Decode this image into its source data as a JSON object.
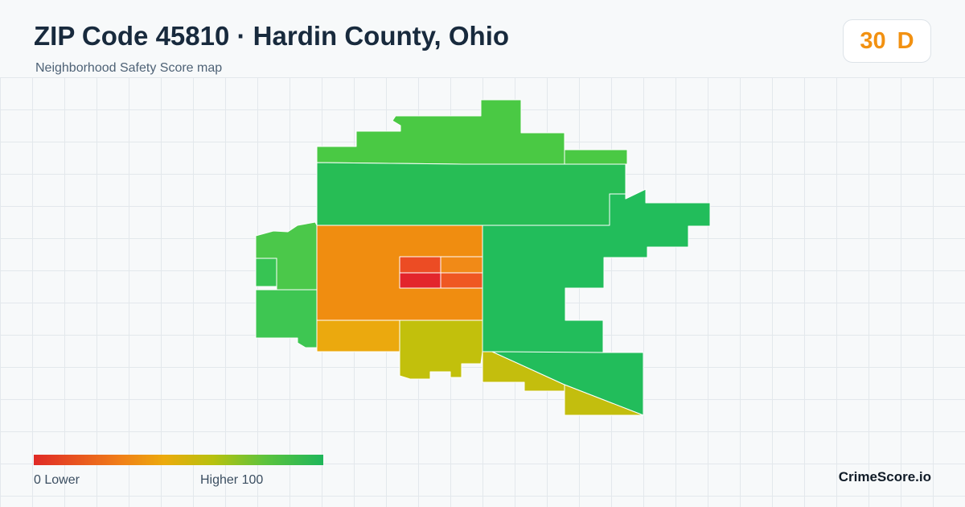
{
  "header": {
    "title": "ZIP Code 45810 · Hardin County, Ohio",
    "subtitle": "Neighborhood Safety Score map"
  },
  "score": {
    "value": "30",
    "grade": "D",
    "color": "#f29111"
  },
  "map": {
    "regions": [
      {
        "id": "north-top",
        "color": "#4ac944"
      },
      {
        "id": "north-band",
        "color": "#4ac944"
      },
      {
        "id": "northeast-small",
        "color": "#4ac944"
      },
      {
        "id": "north-wide",
        "color": "#27bd55"
      },
      {
        "id": "east-large",
        "color": "#22bd5b"
      },
      {
        "id": "west-upper",
        "color": "#4bc84a"
      },
      {
        "id": "west-lower",
        "color": "#3ec652"
      },
      {
        "id": "west-notch",
        "color": "#37c453"
      },
      {
        "id": "center-orange",
        "color": "#f08d10"
      },
      {
        "id": "center-red-top",
        "color": "#ec4c24"
      },
      {
        "id": "center-orange-small",
        "color": "#f18a17"
      },
      {
        "id": "center-red-bottom",
        "color": "#e3252c"
      },
      {
        "id": "center-red-right",
        "color": "#ef5822"
      },
      {
        "id": "southwest-amber",
        "color": "#eba90e"
      },
      {
        "id": "south-olive",
        "color": "#c2c00c"
      },
      {
        "id": "south-strip",
        "color": "#c4be0d"
      },
      {
        "id": "southeast-green",
        "color": "#22bd5b"
      },
      {
        "id": "southeast-tip",
        "color": "#c3be0e"
      }
    ]
  },
  "legend": {
    "low_label": "0  Lower",
    "high_label": "Higher  100",
    "gradient_colors": [
      "#e02a26",
      "#f07f18",
      "#ecaa0c",
      "#b7c10e",
      "#5cc33d",
      "#1fb65a"
    ]
  },
  "brand": "CrimeScore.io"
}
